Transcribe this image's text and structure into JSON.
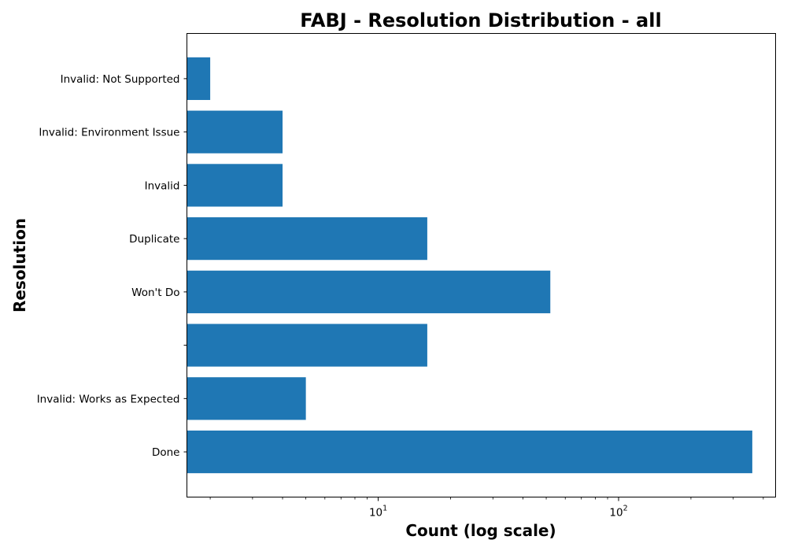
{
  "chart_data": {
    "type": "bar",
    "orientation": "horizontal",
    "title": "FABJ - Resolution Distribution - all",
    "xlabel": "Count (log scale)",
    "ylabel": "Resolution",
    "x_scale": "log",
    "xlim": [
      1.6,
      450
    ],
    "categories": [
      "Done",
      "Invalid: Works as Expected",
      "",
      "Won't Do",
      "Duplicate",
      "Invalid",
      "Invalid: Environment Issue",
      "Invalid: Not Supported"
    ],
    "values": [
      360,
      5,
      16,
      52,
      16,
      4,
      4,
      2
    ],
    "x_ticks": [
      {
        "value": 10,
        "base": "10",
        "exp": "1"
      },
      {
        "value": 100,
        "base": "10",
        "exp": "2"
      }
    ],
    "bar_color": "#1f77b4",
    "grid": false,
    "legend": "none"
  }
}
